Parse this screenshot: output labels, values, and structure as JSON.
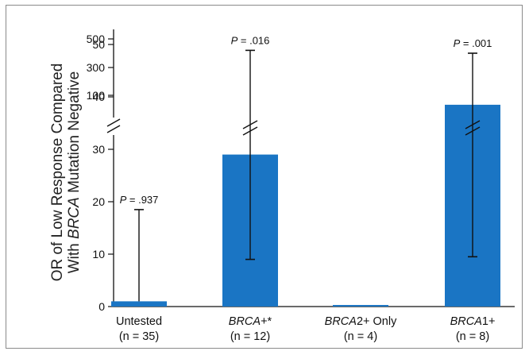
{
  "chart_data": {
    "type": "bar",
    "ylabel_parts": [
      "OR of Low Response Compared",
      "With ",
      "BRCA",
      " Mutation Negative"
    ],
    "yticks_lower": [
      "0",
      "10",
      "20",
      "30",
      "40",
      "50"
    ],
    "yticks_upper": [
      "100",
      "300",
      "500"
    ],
    "broken_axis": true,
    "categories": [
      {
        "name_italic": "",
        "name": "Untested",
        "n": "(n = 35)",
        "value": 1,
        "ci_upper": 18.5,
        "ci_upper_broken": false,
        "p": "P",
        "p_val": " = .937"
      },
      {
        "name_italic": "BRCA",
        "name": "+*",
        "n": "(n = 12)",
        "value": 29,
        "ci_lower": 9,
        "ci_upper": 420,
        "ci_upper_broken": true,
        "p": "P",
        "p_val": " = .016"
      },
      {
        "name_italic": "BRCA",
        "name": "2+ Only",
        "n": "(n = 4)",
        "value": 0.3,
        "ci_upper_broken": false,
        "p": "",
        "p_val": ""
      },
      {
        "name_italic": "BRCA",
        "name": "1+",
        "n": "(n = 8)",
        "value": 38.5,
        "ci_lower": 9.5,
        "ci_upper": 400,
        "ci_upper_broken": true,
        "p": "P",
        "p_val": " = .001"
      }
    ],
    "bar_color": "#1a75c4"
  }
}
